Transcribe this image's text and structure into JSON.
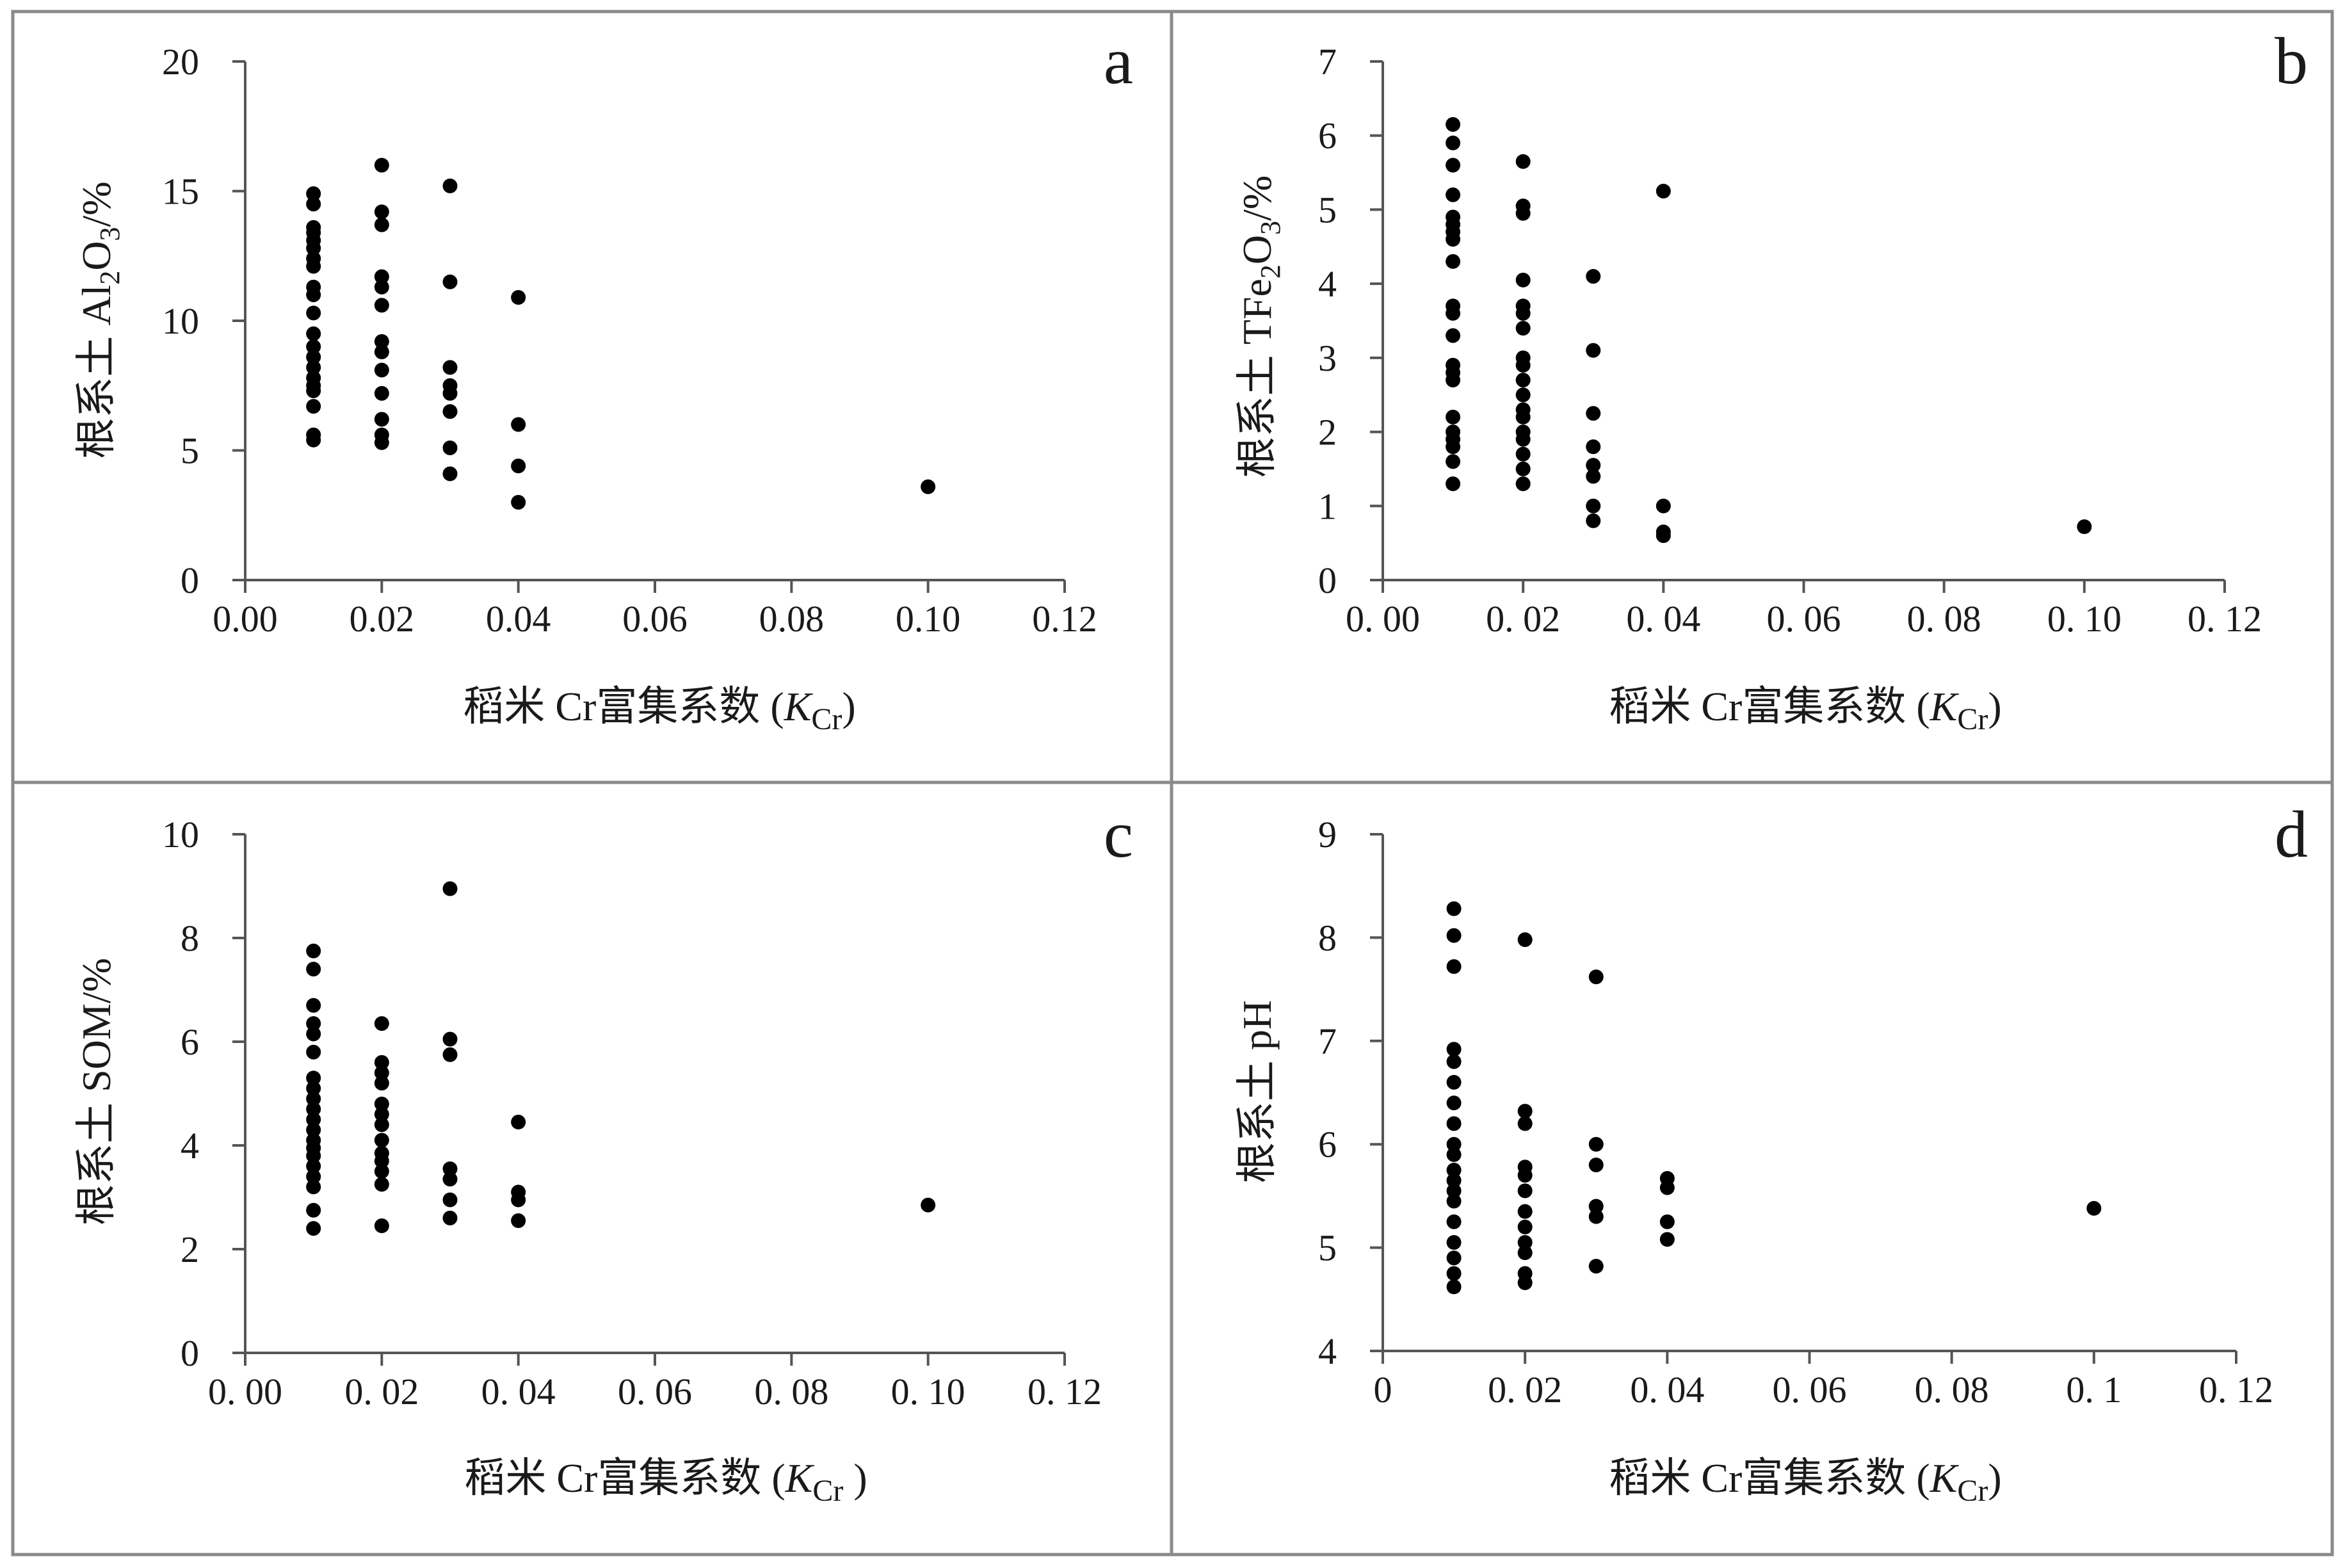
{
  "chart_data": [
    {
      "panel": "a",
      "type": "scatter",
      "ylabel": "根系土 Al2O3/%",
      "ylabel_parts": {
        "pre": "根系土 Al",
        "sub1": "2",
        "mid": "O",
        "sub2": "3",
        "post": "/%"
      },
      "xlabel_parts": {
        "pre": "稻米 Cr富集系数 (",
        "k": "K",
        "sub": "Cr",
        "post": ")"
      },
      "xlim": [
        0,
        0.12
      ],
      "ylim": [
        0,
        20
      ],
      "xticks": [
        "0.00",
        "0.02",
        "0.04",
        "0.06",
        "0.08",
        "0.10",
        "0.12"
      ],
      "yticks": [
        "0",
        "5",
        "10",
        "15",
        "20"
      ],
      "points": [
        [
          0.01,
          14.9
        ],
        [
          0.01,
          14.5
        ],
        [
          0.01,
          13.6
        ],
        [
          0.01,
          13.4
        ],
        [
          0.01,
          13.1
        ],
        [
          0.01,
          12.8
        ],
        [
          0.01,
          12.4
        ],
        [
          0.01,
          12.1
        ],
        [
          0.01,
          11.3
        ],
        [
          0.01,
          11.0
        ],
        [
          0.01,
          10.3
        ],
        [
          0.01,
          9.5
        ],
        [
          0.01,
          9.0
        ],
        [
          0.01,
          8.6
        ],
        [
          0.01,
          8.2
        ],
        [
          0.01,
          7.8
        ],
        [
          0.01,
          7.5
        ],
        [
          0.01,
          7.3
        ],
        [
          0.01,
          6.7
        ],
        [
          0.01,
          5.6
        ],
        [
          0.01,
          5.4
        ],
        [
          0.02,
          16.0
        ],
        [
          0.02,
          14.2
        ],
        [
          0.02,
          13.7
        ],
        [
          0.02,
          11.7
        ],
        [
          0.02,
          11.3
        ],
        [
          0.02,
          10.6
        ],
        [
          0.02,
          9.2
        ],
        [
          0.02,
          8.8
        ],
        [
          0.02,
          8.1
        ],
        [
          0.02,
          7.2
        ],
        [
          0.02,
          6.2
        ],
        [
          0.02,
          5.6
        ],
        [
          0.02,
          5.3
        ],
        [
          0.03,
          15.2
        ],
        [
          0.03,
          11.5
        ],
        [
          0.03,
          8.2
        ],
        [
          0.03,
          7.5
        ],
        [
          0.03,
          7.2
        ],
        [
          0.03,
          6.5
        ],
        [
          0.03,
          5.1
        ],
        [
          0.03,
          4.1
        ],
        [
          0.04,
          10.9
        ],
        [
          0.04,
          6.0
        ],
        [
          0.04,
          4.4
        ],
        [
          0.04,
          3.0
        ],
        [
          0.1,
          3.6
        ]
      ]
    },
    {
      "panel": "b",
      "type": "scatter",
      "ylabel": "根系土 TFe2O3/%",
      "ylabel_parts": {
        "pre": "根系土 TFe",
        "sub1": "2",
        "mid": "O",
        "sub2": "3",
        "post": "/%"
      },
      "xlabel_parts": {
        "pre": "稻米 Cr富集系数 (",
        "k": "K",
        "sub": "Cr",
        "post": ")"
      },
      "xlim": [
        0,
        0.12
      ],
      "ylim": [
        0,
        7
      ],
      "xticks": [
        "0. 00",
        "0. 02",
        "0. 04",
        "0. 06",
        "0. 08",
        "0. 10",
        "0. 12"
      ],
      "yticks": [
        "0",
        "1",
        "2",
        "3",
        "4",
        "5",
        "6",
        "7"
      ],
      "points": [
        [
          0.01,
          6.15
        ],
        [
          0.01,
          5.9
        ],
        [
          0.01,
          5.6
        ],
        [
          0.01,
          5.2
        ],
        [
          0.01,
          4.9
        ],
        [
          0.01,
          4.8
        ],
        [
          0.01,
          4.7
        ],
        [
          0.01,
          4.6
        ],
        [
          0.01,
          4.3
        ],
        [
          0.01,
          3.7
        ],
        [
          0.01,
          3.6
        ],
        [
          0.01,
          3.3
        ],
        [
          0.01,
          2.9
        ],
        [
          0.01,
          2.8
        ],
        [
          0.01,
          2.7
        ],
        [
          0.01,
          2.2
        ],
        [
          0.01,
          2.0
        ],
        [
          0.01,
          1.9
        ],
        [
          0.01,
          1.8
        ],
        [
          0.01,
          1.6
        ],
        [
          0.01,
          1.3
        ],
        [
          0.02,
          5.65
        ],
        [
          0.02,
          5.05
        ],
        [
          0.02,
          4.95
        ],
        [
          0.02,
          4.05
        ],
        [
          0.02,
          3.7
        ],
        [
          0.02,
          3.6
        ],
        [
          0.02,
          3.4
        ],
        [
          0.02,
          3.0
        ],
        [
          0.02,
          2.9
        ],
        [
          0.02,
          2.7
        ],
        [
          0.02,
          2.5
        ],
        [
          0.02,
          2.3
        ],
        [
          0.02,
          2.2
        ],
        [
          0.02,
          2.0
        ],
        [
          0.02,
          1.9
        ],
        [
          0.02,
          1.7
        ],
        [
          0.02,
          1.5
        ],
        [
          0.02,
          1.3
        ],
        [
          0.03,
          4.1
        ],
        [
          0.03,
          3.1
        ],
        [
          0.03,
          2.25
        ],
        [
          0.03,
          1.8
        ],
        [
          0.03,
          1.55
        ],
        [
          0.03,
          1.4
        ],
        [
          0.03,
          1.0
        ],
        [
          0.03,
          0.8
        ],
        [
          0.04,
          5.25
        ],
        [
          0.04,
          1.0
        ],
        [
          0.04,
          0.65
        ],
        [
          0.04,
          0.6
        ],
        [
          0.1,
          0.72
        ]
      ]
    },
    {
      "panel": "c",
      "type": "scatter",
      "ylabel": "根系土 SOM/%",
      "ylabel_parts": {
        "pre": "根系土 SOM/%",
        "sub1": "",
        "mid": "",
        "sub2": "",
        "post": ""
      },
      "xlabel_parts": {
        "pre": "稻米 Cr富集系数 (",
        "k": "K",
        "sub": "Cr",
        "post": " )"
      },
      "xlim": [
        0,
        0.12
      ],
      "ylim": [
        0,
        10
      ],
      "xticks": [
        "0. 00",
        "0. 02",
        "0. 04",
        "0. 06",
        "0. 08",
        "0. 10",
        "0. 12"
      ],
      "yticks": [
        "0",
        "2",
        "4",
        "6",
        "8",
        "10"
      ],
      "points": [
        [
          0.01,
          7.75
        ],
        [
          0.01,
          7.4
        ],
        [
          0.01,
          6.7
        ],
        [
          0.01,
          6.35
        ],
        [
          0.01,
          6.15
        ],
        [
          0.01,
          5.8
        ],
        [
          0.01,
          5.3
        ],
        [
          0.01,
          5.1
        ],
        [
          0.01,
          4.9
        ],
        [
          0.01,
          4.7
        ],
        [
          0.01,
          4.5
        ],
        [
          0.01,
          4.3
        ],
        [
          0.01,
          4.1
        ],
        [
          0.01,
          3.95
        ],
        [
          0.01,
          3.8
        ],
        [
          0.01,
          3.6
        ],
        [
          0.01,
          3.4
        ],
        [
          0.01,
          3.2
        ],
        [
          0.01,
          2.75
        ],
        [
          0.01,
          2.4
        ],
        [
          0.02,
          6.35
        ],
        [
          0.02,
          5.6
        ],
        [
          0.02,
          5.4
        ],
        [
          0.02,
          5.2
        ],
        [
          0.02,
          4.8
        ],
        [
          0.02,
          4.6
        ],
        [
          0.02,
          4.4
        ],
        [
          0.02,
          4.1
        ],
        [
          0.02,
          3.85
        ],
        [
          0.02,
          3.7
        ],
        [
          0.02,
          3.5
        ],
        [
          0.02,
          3.25
        ],
        [
          0.02,
          2.45
        ],
        [
          0.03,
          8.95
        ],
        [
          0.03,
          6.05
        ],
        [
          0.03,
          5.75
        ],
        [
          0.03,
          3.55
        ],
        [
          0.03,
          3.35
        ],
        [
          0.03,
          2.95
        ],
        [
          0.03,
          2.6
        ],
        [
          0.04,
          4.45
        ],
        [
          0.04,
          3.1
        ],
        [
          0.04,
          2.95
        ],
        [
          0.04,
          2.55
        ],
        [
          0.1,
          2.85
        ]
      ]
    },
    {
      "panel": "d",
      "type": "scatter",
      "ylabel": "根系土 pH",
      "ylabel_parts": {
        "pre": "根系土 pH",
        "sub1": "",
        "mid": "",
        "sub2": "",
        "post": ""
      },
      "xlabel_parts": {
        "pre": "稻米 Cr富集系数 (",
        "k": "K",
        "sub": "Cr",
        "post": ")"
      },
      "xlim": [
        0,
        0.12
      ],
      "ylim": [
        4,
        9
      ],
      "xticks": [
        "0",
        "0. 02",
        "0. 04",
        "0. 06",
        "0. 08",
        "0. 1",
        "0. 12"
      ],
      "yticks": [
        "4",
        "5",
        "6",
        "7",
        "8",
        "9"
      ],
      "points": [
        [
          0.01,
          8.28
        ],
        [
          0.01,
          8.02
        ],
        [
          0.01,
          7.72
        ],
        [
          0.01,
          6.92
        ],
        [
          0.01,
          6.8
        ],
        [
          0.01,
          6.6
        ],
        [
          0.01,
          6.4
        ],
        [
          0.01,
          6.2
        ],
        [
          0.01,
          6.0
        ],
        [
          0.01,
          5.9
        ],
        [
          0.01,
          5.75
        ],
        [
          0.01,
          5.65
        ],
        [
          0.01,
          5.55
        ],
        [
          0.01,
          5.45
        ],
        [
          0.01,
          5.25
        ],
        [
          0.01,
          5.05
        ],
        [
          0.01,
          4.9
        ],
        [
          0.01,
          4.75
        ],
        [
          0.01,
          4.62
        ],
        [
          0.02,
          7.98
        ],
        [
          0.02,
          6.32
        ],
        [
          0.02,
          6.2
        ],
        [
          0.02,
          5.78
        ],
        [
          0.02,
          5.7
        ],
        [
          0.02,
          5.55
        ],
        [
          0.02,
          5.35
        ],
        [
          0.02,
          5.2
        ],
        [
          0.02,
          5.05
        ],
        [
          0.02,
          4.95
        ],
        [
          0.02,
          4.75
        ],
        [
          0.02,
          4.66
        ],
        [
          0.03,
          7.62
        ],
        [
          0.03,
          6.0
        ],
        [
          0.03,
          5.8
        ],
        [
          0.03,
          5.4
        ],
        [
          0.03,
          5.3
        ],
        [
          0.03,
          4.82
        ],
        [
          0.04,
          5.67
        ],
        [
          0.04,
          5.58
        ],
        [
          0.04,
          5.25
        ],
        [
          0.04,
          5.08
        ],
        [
          0.1,
          5.38
        ]
      ]
    }
  ],
  "colors": {
    "marker": "#000000",
    "axis": "#555555",
    "border": "#8a8a8a",
    "text": "#1a1a1a"
  }
}
